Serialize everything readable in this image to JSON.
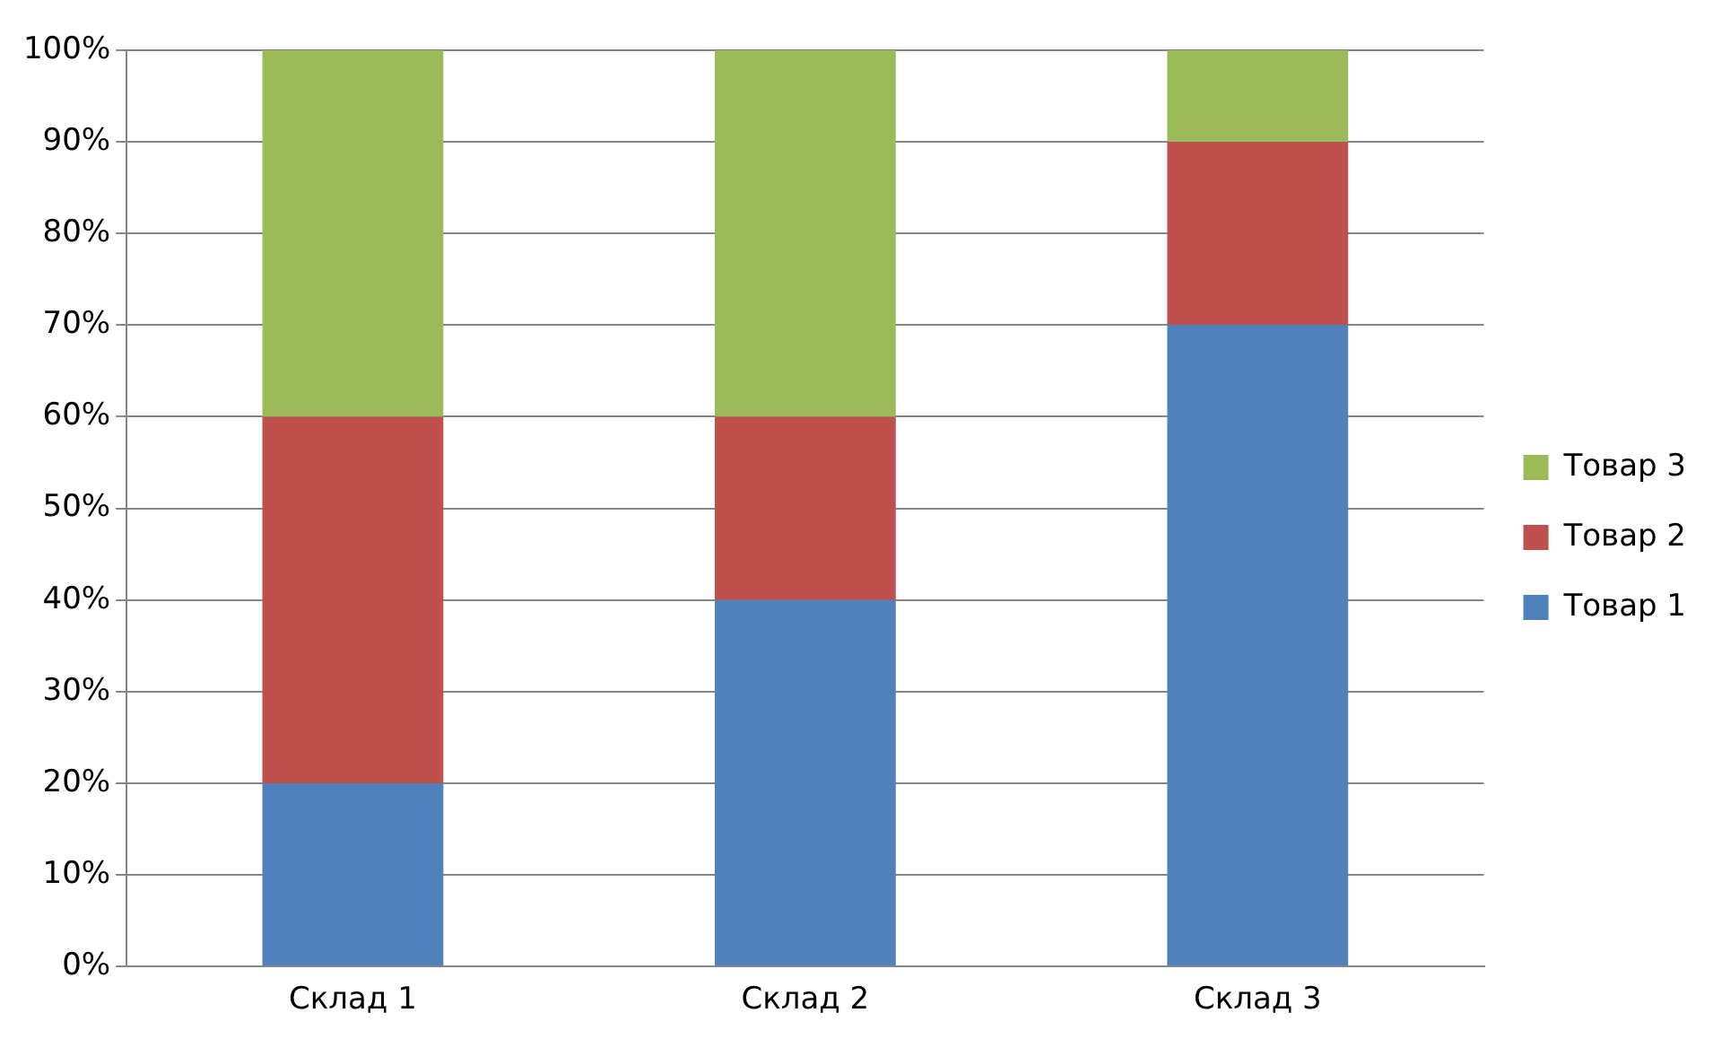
{
  "chart_data": {
    "type": "bar",
    "stacked": true,
    "categories": [
      "Склад 1",
      "Склад 2",
      "Склад 3"
    ],
    "series": [
      {
        "name": "Товар 1",
        "color": "#4f81bd",
        "values": [
          20,
          40,
          70
        ]
      },
      {
        "name": "Товар 2",
        "color": "#c0504d",
        "values": [
          40,
          20,
          20
        ]
      },
      {
        "name": "Товар 3",
        "color": "#9bbb59",
        "values": [
          40,
          40,
          10
        ]
      }
    ],
    "ylim": [
      0,
      100
    ],
    "yticks": [
      {
        "value": 0,
        "label": "0%"
      },
      {
        "value": 10,
        "label": "10%"
      },
      {
        "value": 20,
        "label": "20%"
      },
      {
        "value": 30,
        "label": "30%"
      },
      {
        "value": 40,
        "label": "40%"
      },
      {
        "value": 50,
        "label": "50%"
      },
      {
        "value": 60,
        "label": "60%"
      },
      {
        "value": 70,
        "label": "70%"
      },
      {
        "value": 80,
        "label": "80%"
      },
      {
        "value": 90,
        "label": "90%"
      },
      {
        "value": 100,
        "label": "100%"
      }
    ],
    "grid": "y",
    "legend": "right"
  }
}
